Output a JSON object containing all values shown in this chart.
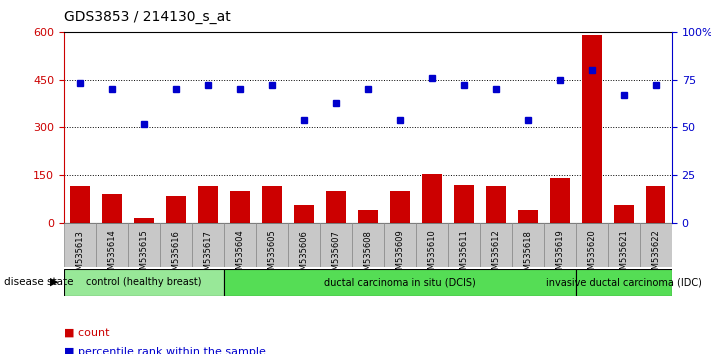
{
  "title": "GDS3853 / 214130_s_at",
  "samples": [
    "GSM535613",
    "GSM535614",
    "GSM535615",
    "GSM535616",
    "GSM535617",
    "GSM535604",
    "GSM535605",
    "GSM535606",
    "GSM535607",
    "GSM535608",
    "GSM535609",
    "GSM535610",
    "GSM535611",
    "GSM535612",
    "GSM535618",
    "GSM535619",
    "GSM535620",
    "GSM535621",
    "GSM535622"
  ],
  "counts": [
    115,
    90,
    15,
    85,
    115,
    100,
    115,
    55,
    100,
    40,
    100,
    155,
    120,
    115,
    40,
    140,
    590,
    55,
    115
  ],
  "percentiles": [
    73,
    70,
    52,
    70,
    72,
    70,
    72,
    54,
    63,
    70,
    54,
    76,
    72,
    70,
    54,
    75,
    80,
    67,
    72
  ],
  "bar_color": "#CC0000",
  "dot_color": "#0000CC",
  "ylim_left": [
    0,
    600
  ],
  "ylim_right": [
    0,
    100
  ],
  "yticks_left": [
    0,
    150,
    300,
    450,
    600
  ],
  "ytick_labels_left": [
    "0",
    "150",
    "300",
    "450",
    "600"
  ],
  "ytick_labels_right": [
    "0",
    "25",
    "50",
    "75",
    "100%"
  ],
  "groups": [
    {
      "label": "control (healthy breast)",
      "start": 0,
      "end": 4,
      "color": "#98E898"
    },
    {
      "label": "ductal carcinoma in situ (DCIS)",
      "start": 5,
      "end": 15,
      "color": "#55DD55"
    },
    {
      "label": "invasive ductal carcinoma (IDC)",
      "start": 16,
      "end": 18,
      "color": "#55DD55"
    }
  ],
  "xticklabel_bg": "#C8C8C8",
  "legend_items": [
    {
      "label": "count",
      "color": "#CC0000"
    },
    {
      "label": "percentile rank within the sample",
      "color": "#0000CC"
    }
  ]
}
